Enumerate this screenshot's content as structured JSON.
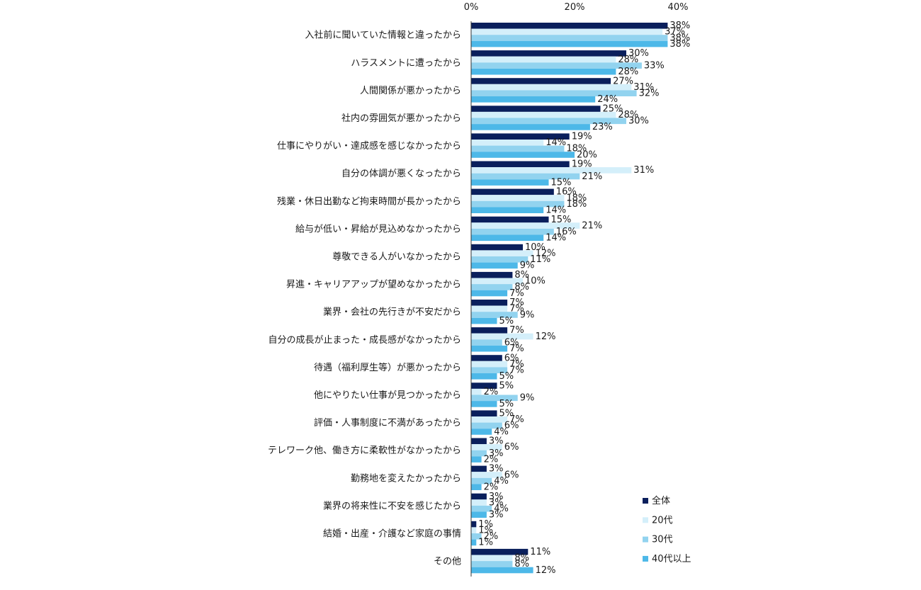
{
  "chart_data": {
    "type": "bar",
    "orientation": "horizontal",
    "title": "",
    "xlabel": "",
    "ylabel": "",
    "xlim": [
      0,
      40
    ],
    "x_ticks": [
      "0%",
      "20%",
      "40%"
    ],
    "x_tick_values": [
      0,
      20,
      40
    ],
    "axis_position": "top",
    "grid": false,
    "legend_position": "bottom-right",
    "value_suffix": "%",
    "categories": [
      "入社前に聞いていた情報と違ったから",
      "ハラスメントに遭ったから",
      "人間関係が悪かったから",
      "社内の雰囲気が悪かったから",
      "仕事にやりがい・達成感を感じなかったから",
      "自分の体調が悪くなったから",
      "残業・休日出勤など拘束時間が長かったから",
      "給与が低い・昇給が見込めなかったから",
      "尊敬できる人がいなかったから",
      "昇進・キャリアアップが望めなかったから",
      "業界・会社の先行きが不安だから",
      "自分の成長が止まった・成長感がなかったから",
      "待遇（福利厚生等）が悪かったから",
      "他にやりたい仕事が見つかったから",
      "評価・人事制度に不満があったから",
      "テレワーク他、働き方に柔軟性がなかったから",
      "勤務地を変えたかったから",
      "業界の将来性に不安を感じたから",
      "結婚・出産・介護など家庭の事情",
      "その他"
    ],
    "series": [
      {
        "name": "全体",
        "color": "#0a1f5c",
        "values": [
          38,
          30,
          27,
          25,
          19,
          19,
          16,
          15,
          10,
          8,
          7,
          7,
          6,
          5,
          5,
          3,
          3,
          3,
          1,
          11
        ]
      },
      {
        "name": "20代",
        "color": "#d4effa",
        "values": [
          37,
          28,
          31,
          28,
          14,
          31,
          18,
          21,
          12,
          10,
          7,
          12,
          7,
          2,
          7,
          6,
          6,
          3,
          1,
          8
        ]
      },
      {
        "name": "30代",
        "color": "#92d3ef",
        "values": [
          38,
          33,
          32,
          30,
          18,
          21,
          18,
          16,
          11,
          8,
          9,
          6,
          7,
          9,
          6,
          3,
          4,
          4,
          2,
          8
        ]
      },
      {
        "name": "40代以上",
        "color": "#4db8e8",
        "values": [
          38,
          28,
          24,
          23,
          20,
          15,
          14,
          14,
          9,
          7,
          5,
          7,
          5,
          5,
          4,
          2,
          2,
          3,
          1,
          12
        ]
      }
    ]
  }
}
